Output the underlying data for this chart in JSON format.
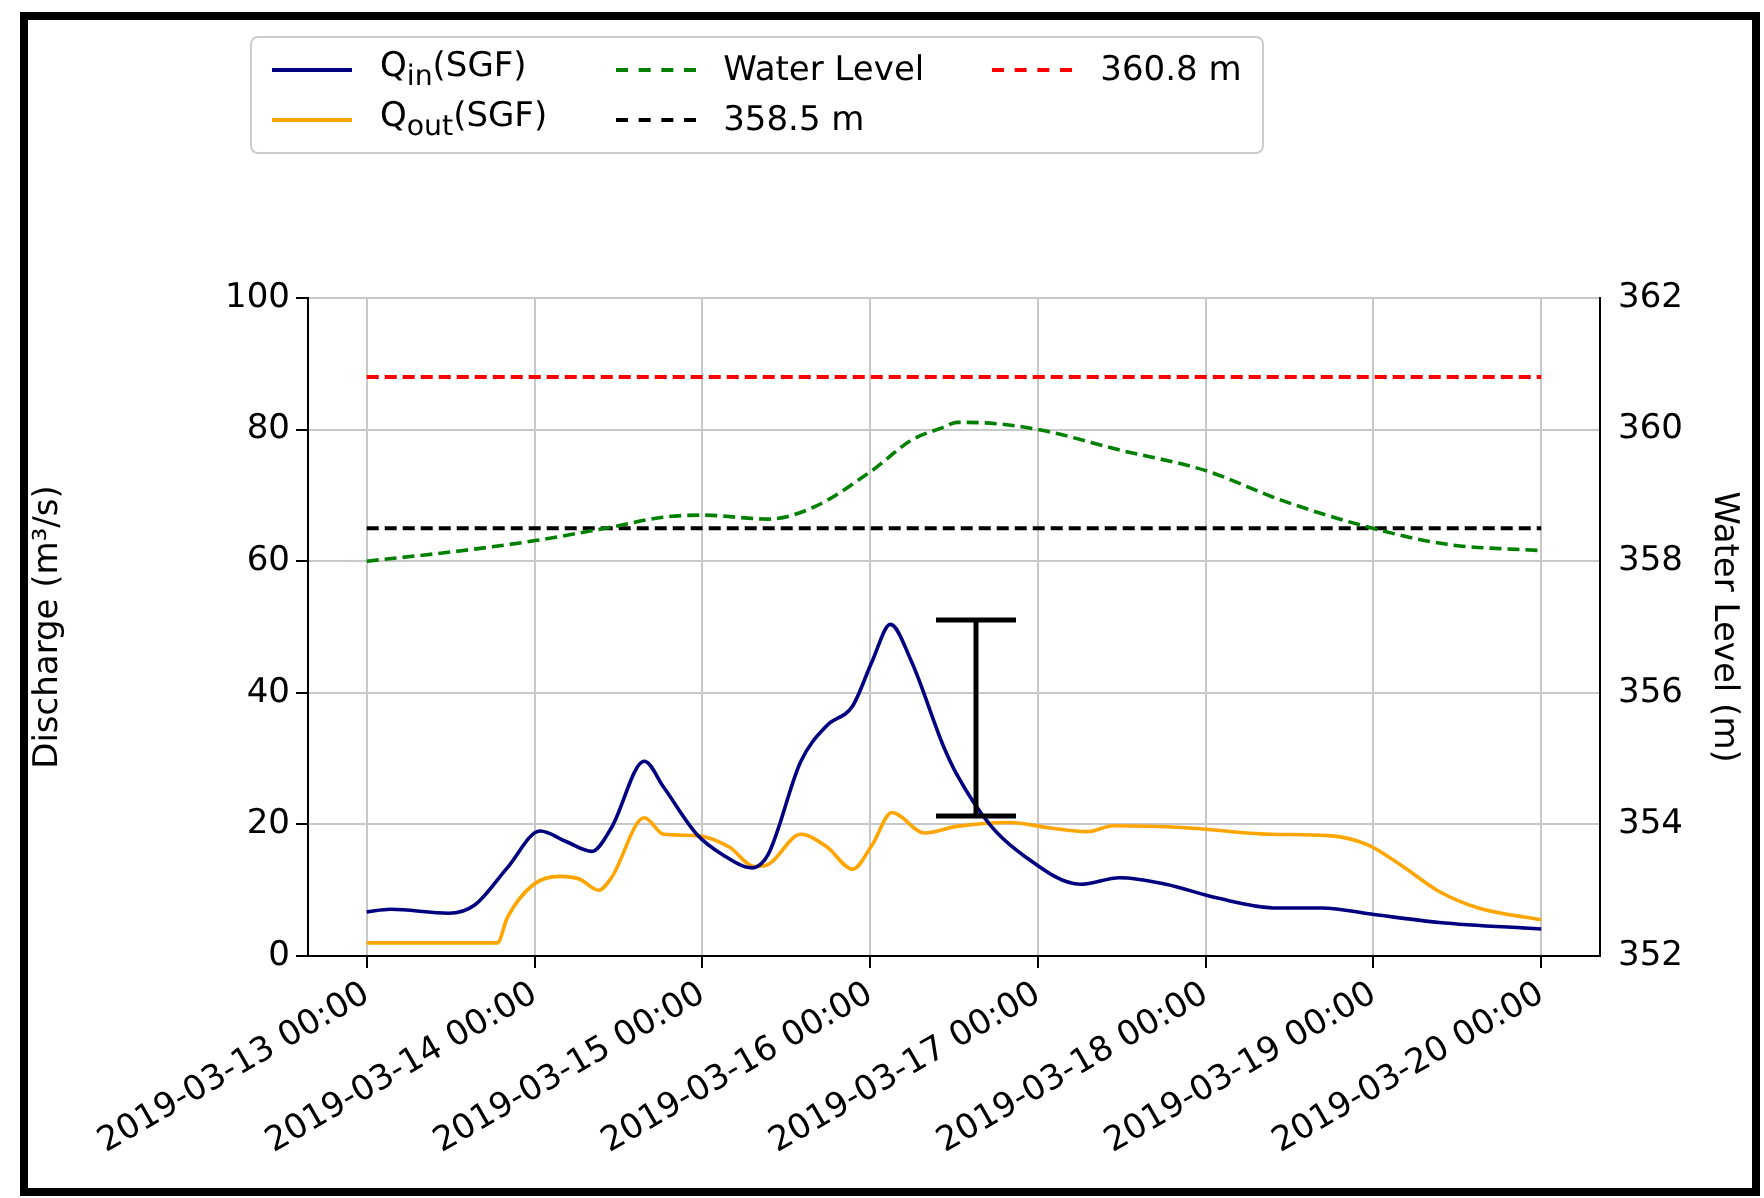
{
  "chart_data": {
    "type": "line",
    "ylabel": "Discharge (m³/s)",
    "y2label": "Water Level (m)",
    "legend": "top",
    "grid": true,
    "xlim": [
      "2019-03-12T15:36",
      "2019-03-20T08:24"
    ],
    "xticks": [
      {
        "value": "2019-03-13",
        "label": "2019-03-13 00:00"
      },
      {
        "value": "2019-03-14",
        "label": "2019-03-14 00:00"
      },
      {
        "value": "2019-03-15",
        "label": "2019-03-15 00:00"
      },
      {
        "value": "2019-03-16",
        "label": "2019-03-16 00:00"
      },
      {
        "value": "2019-03-17",
        "label": "2019-03-17 00:00"
      },
      {
        "value": "2019-03-18",
        "label": "2019-03-18 00:00"
      },
      {
        "value": "2019-03-19",
        "label": "2019-03-19 00:00"
      },
      {
        "value": "2019-03-20",
        "label": "2019-03-20 00:00"
      }
    ],
    "ylim": [
      0,
      100
    ],
    "yticks": [
      0,
      20,
      40,
      60,
      80,
      100
    ],
    "y2lim": [
      352,
      362
    ],
    "y2ticks": [
      352,
      354,
      356,
      358,
      360,
      362
    ],
    "series": [
      {
        "name": "Q$_{in}$(SGF)",
        "color": "#000080",
        "line_style": "solid",
        "x": [
          "2019-03-13T00:00",
          "2019-03-13T03:24",
          "2019-03-13T11:42",
          "2019-03-13T15:30",
          "2019-03-13T20:06",
          "2019-03-14T00:48",
          "2019-03-14T04:30",
          "2019-03-14T08:12",
          "2019-03-14T11:00",
          "2019-03-14T15:42",
          "2019-03-14T18:30",
          "2019-03-14T23:12",
          "2019-03-15T02:54",
          "2019-03-15T07:06",
          "2019-03-15T09:24",
          "2019-03-15T14:06",
          "2019-03-15T17:48",
          "2019-03-15T21:30",
          "2019-03-16T00:18",
          "2019-03-16T02:54",
          "2019-03-16T05:54",
          "2019-03-16T10:36",
          "2019-03-16T12:24",
          "2019-03-16T17:06",
          "2019-03-16T21:48",
          "2019-03-17T06:06",
          "2019-03-17T11:42",
          "2019-03-17T18:18",
          "2019-03-18T01:42",
          "2019-03-18T10:06",
          "2019-03-18T16:36",
          "2019-03-19T00:06",
          "2019-03-19T09:24",
          "2019-03-20T00:00"
        ],
        "values": [
          6.7,
          7.1,
          6.5,
          7.8,
          13.4,
          19.0,
          17.4,
          15.9,
          19.5,
          29.6,
          25.6,
          18.5,
          15.4,
          13.4,
          15.4,
          29.6,
          35,
          38,
          44.8,
          50.4,
          44.8,
          31.6,
          27.6,
          20.0,
          15.4,
          10.9,
          11.9,
          10.9,
          8.8,
          7.3,
          7.3,
          6.3,
          5.1,
          4.1
        ]
      },
      {
        "name": "Q$_{out}$(SGF)",
        "color": "#ffa500",
        "line_style": "solid",
        "x": [
          "2019-03-13T00:00",
          "2019-03-13T18:42",
          "2019-03-13T20:06",
          "2019-03-13T23:54",
          "2019-03-14T03:36",
          "2019-03-14T06:24",
          "2019-03-14T09:12",
          "2019-03-14T11:00",
          "2019-03-14T15:42",
          "2019-03-14T18:30",
          "2019-03-14T23:12",
          "2019-03-15T03:48",
          "2019-03-15T07:30",
          "2019-03-15T09:24",
          "2019-03-15T14:06",
          "2019-03-15T17:48",
          "2019-03-15T21:30",
          "2019-03-16T00:18",
          "2019-03-16T03:06",
          "2019-03-16T07:48",
          "2019-03-16T12:24",
          "2019-03-16T19:54",
          "2019-03-17T01:30",
          "2019-03-17T07:06",
          "2019-03-17T10:48",
          "2019-03-17T21:06",
          "2019-03-18T09:12",
          "2019-03-18T17:36",
          "2019-03-18T23:12",
          "2019-03-19T03:48",
          "2019-03-19T09:24",
          "2019-03-19T15:00",
          "2019-03-20T00:00"
        ],
        "values": [
          2.0,
          2.0,
          5.8,
          10.9,
          12.1,
          11.7,
          10.0,
          11.9,
          21.0,
          18.5,
          18.3,
          16.6,
          13.6,
          13.9,
          18.5,
          16.6,
          13.2,
          16.9,
          21.8,
          18.7,
          19.7,
          20.3,
          19.5,
          18.9,
          19.8,
          19.5,
          18.5,
          18.3,
          16.9,
          13.9,
          9.8,
          7.3,
          5.5
        ]
      },
      {
        "name": "Water Level",
        "type": "line",
        "axis": "y2",
        "color": "#008000",
        "line_style": "dashed",
        "x": [
          "2019-03-13T00:00",
          "2019-03-13T13:36",
          "2019-03-13T23:54",
          "2019-03-14T10:06",
          "2019-03-14T18:30",
          "2019-03-15T00:06",
          "2019-03-15T09:24",
          "2019-03-15T15:54",
          "2019-03-16T00:18",
          "2019-03-16T05:54",
          "2019-03-16T10:36",
          "2019-03-16T12:24",
          "2019-03-16T18:00",
          "2019-03-17T00:36",
          "2019-03-17T11:42",
          "2019-03-17T23:54",
          "2019-03-18T11:00",
          "2019-03-18T23:12",
          "2019-03-19T10:18",
          "2019-03-20T00:00"
        ],
        "values": [
          358.0,
          358.16,
          358.31,
          358.5,
          358.67,
          358.7,
          358.64,
          358.82,
          359.38,
          359.84,
          360.04,
          360.11,
          360.09,
          359.99,
          359.69,
          359.38,
          358.92,
          358.52,
          358.26,
          358.16
        ]
      }
    ],
    "ref_lines": [
      {
        "axis": "y2",
        "value": 358.5,
        "label": "358.5 m",
        "color": "#000000",
        "line_style": "dashed"
      },
      {
        "axis": "y2",
        "value": 360.8,
        "label": "360.8 m",
        "color": "#ff0000",
        "line_style": "dashed"
      }
    ]
  }
}
